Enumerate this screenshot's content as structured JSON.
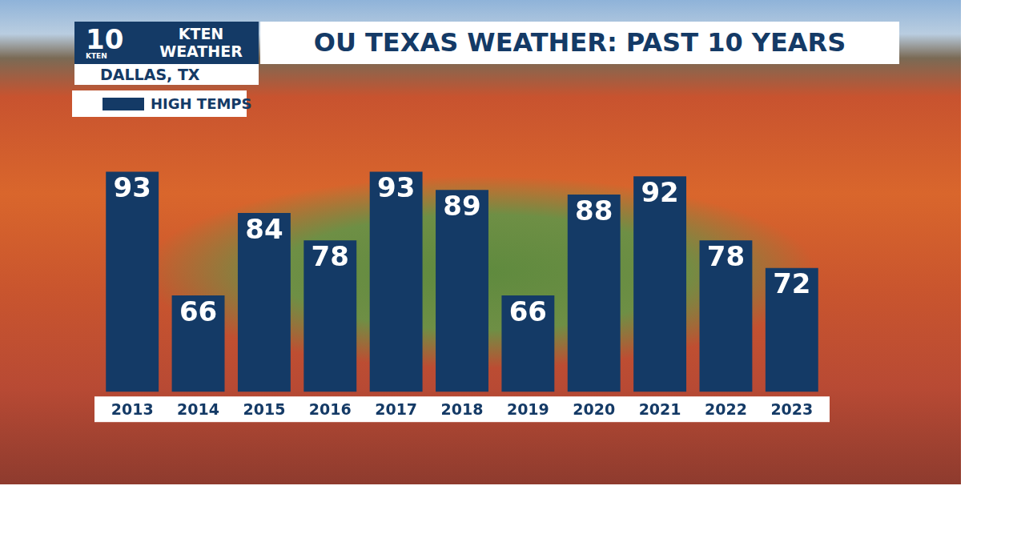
{
  "chart_data": {
    "type": "bar",
    "title": "OU TEXAS WEATHER: PAST 10 YEARS",
    "logo": "10",
    "logo_caption": "KTEN",
    "station": "KTEN WEATHER",
    "location": "DALLAS, TX",
    "categories": [
      "2013",
      "2014",
      "2015",
      "2016",
      "2017",
      "2018",
      "2019",
      "2020",
      "2021",
      "2022",
      "2023"
    ],
    "series": [
      {
        "name": "HIGH TEMPS",
        "color": "#143a66",
        "values": [
          93,
          66,
          84,
          78,
          93,
          89,
          66,
          88,
          92,
          78,
          72
        ]
      }
    ],
    "ylim": [
      45,
      95
    ],
    "grid": false,
    "legend": "top-left",
    "data_labels": true,
    "tick_labels": "x"
  }
}
